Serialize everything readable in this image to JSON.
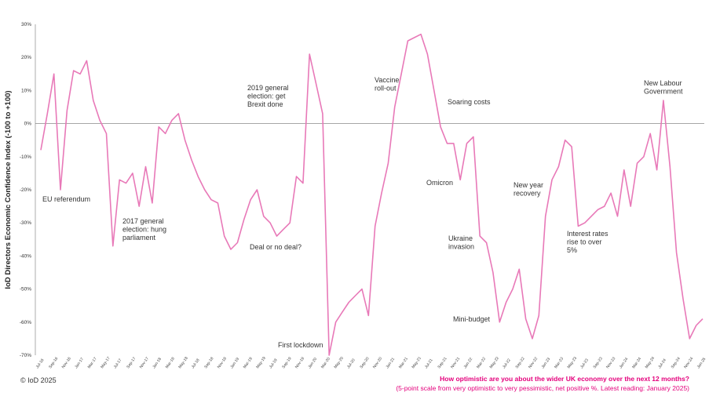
{
  "chart_data": {
    "type": "line",
    "ylabel": "IoD Directors Economic Confidence Index (-100 to +100)",
    "y_tick_labels": [
      "30%",
      "20%",
      "10%",
      "0%",
      "-10%",
      "-20%",
      "-30%",
      "-40%",
      "-50%",
      "-60%",
      "-70%"
    ],
    "ylim": [
      -70,
      30
    ],
    "x_tick_labels": [
      "Jul-16",
      "Sep-16",
      "Nov-16",
      "Jan-17",
      "Mar-17",
      "May-17",
      "Jul-17",
      "Sep-17",
      "Nov-17",
      "Jan-18",
      "Mar-18",
      "May-18",
      "Jul-18",
      "Sep-18",
      "Nov-18",
      "Jan-19",
      "Mar-19",
      "May-19",
      "Jul-19",
      "Sep-19",
      "Nov-19",
      "Jan-20",
      "Mar-20",
      "May-20",
      "Jul-20",
      "Sep-20",
      "Nov-20",
      "Jan-21",
      "Mar-21",
      "May-21",
      "Jul-21",
      "Sep-21",
      "Nov-21",
      "Jan-22",
      "Mar-22",
      "May-22",
      "Jul-22",
      "Sep-22",
      "Nov-22",
      "Jan-23",
      "Mar-23",
      "May-23",
      "Jul-23",
      "Sep-23",
      "Nov-23",
      "Jan-24",
      "Mar-24",
      "May-24",
      "Jul-24",
      "Sep-24",
      "Nov-24",
      "Jan-25"
    ],
    "series": [
      {
        "color": "#e879b8",
        "values": [
          -8,
          3,
          15,
          -20,
          4,
          16,
          15,
          19,
          7,
          1,
          -3,
          -37,
          -17,
          -18,
          -15,
          -25,
          -13,
          -24,
          -1,
          -3,
          1,
          3,
          -5,
          -11,
          -16,
          -20,
          -23,
          -24,
          -34,
          -38,
          -36,
          -29,
          -23,
          -20,
          -28,
          -30,
          -34,
          -32,
          -30,
          -16,
          -18,
          21,
          12,
          3,
          -70,
          -60,
          -57,
          -54,
          -52,
          -50,
          -58,
          -31,
          -21,
          -12,
          5,
          15,
          25,
          26,
          27,
          21,
          10,
          -1,
          -6,
          -6,
          -17,
          -6,
          -4,
          -34,
          -36,
          -45,
          -60,
          -54,
          -50,
          -44,
          -59,
          -65,
          -58,
          -28,
          -17,
          -13,
          -5,
          -7,
          -31,
          -30,
          -28,
          -26,
          -25,
          -21,
          -28,
          -14,
          -25,
          -12,
          -10,
          -3,
          -14,
          7,
          -13,
          -39,
          -53,
          -65,
          -61,
          -59
        ]
      }
    ],
    "annotations": [
      {
        "text": [
          "EU referendum"
        ]
      },
      {
        "text": [
          "2017 general",
          "election: hung",
          "parliament"
        ]
      },
      {
        "text": [
          "2019 general",
          "election: get",
          "Brexit done"
        ]
      },
      {
        "text": [
          "Deal or no deal?"
        ]
      },
      {
        "text": [
          "First lockdown"
        ]
      },
      {
        "text": [
          "Vaccine",
          "roll-out"
        ]
      },
      {
        "text": [
          "Soaring costs"
        ]
      },
      {
        "text": [
          "Omicron"
        ]
      },
      {
        "text": [
          "Ukraine",
          "invasion"
        ]
      },
      {
        "text": [
          "Mini-budget"
        ]
      },
      {
        "text": [
          "New year",
          "recovery"
        ]
      },
      {
        "text": [
          "Interest rates",
          "rise to over",
          "5%"
        ]
      },
      {
        "text": [
          "New Labour",
          "Government"
        ]
      }
    ],
    "grid": false,
    "zero_line": true
  },
  "footer": {
    "copyright": "© IoD 2025",
    "question": "How optimistic are you about the wider UK economy over the next 12 months?",
    "note": "(5-point scale from very optimistic to very pessimistic, net positive %. Latest reading: January 2025)"
  }
}
